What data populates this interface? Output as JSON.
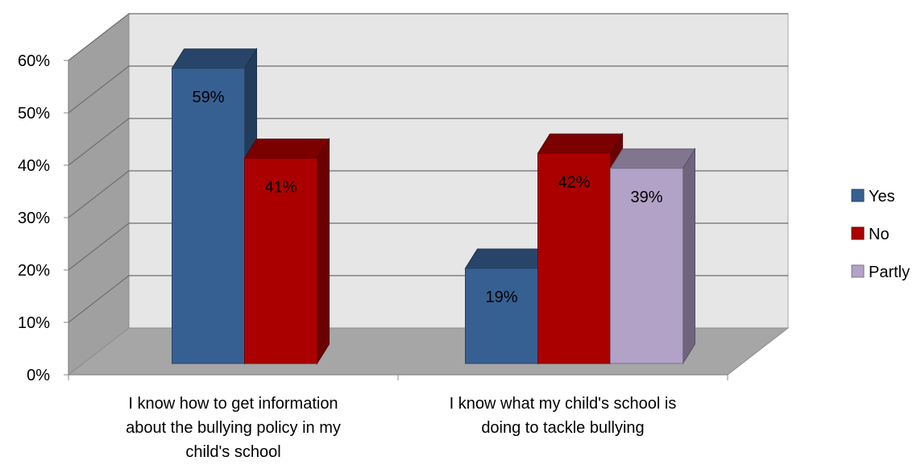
{
  "chart_data": {
    "type": "bar",
    "title": "",
    "xlabel": "",
    "ylabel": "",
    "ylim": [
      0,
      0.6
    ],
    "y_ticks": [
      "0%",
      "10%",
      "20%",
      "30%",
      "40%",
      "50%",
      "60%"
    ],
    "grid": true,
    "legend_position": "right",
    "categories": [
      [
        "I know how to get information",
        "about the bullying policy in my",
        "child's school"
      ],
      [
        "I know what my child's school is",
        "doing to tackle bullying"
      ]
    ],
    "series": [
      {
        "name": "Yes",
        "color": "#376092",
        "values": [
          0.59,
          0.19
        ],
        "labels": [
          "59%",
          "19%"
        ]
      },
      {
        "name": "No",
        "color": "#AB0000",
        "values": [
          0.41,
          0.42
        ],
        "labels": [
          "41%",
          "42%"
        ]
      },
      {
        "name": "Partly",
        "color": "#B3A2C7",
        "values": [
          null,
          0.39
        ],
        "labels": [
          null,
          "39%"
        ]
      }
    ]
  }
}
